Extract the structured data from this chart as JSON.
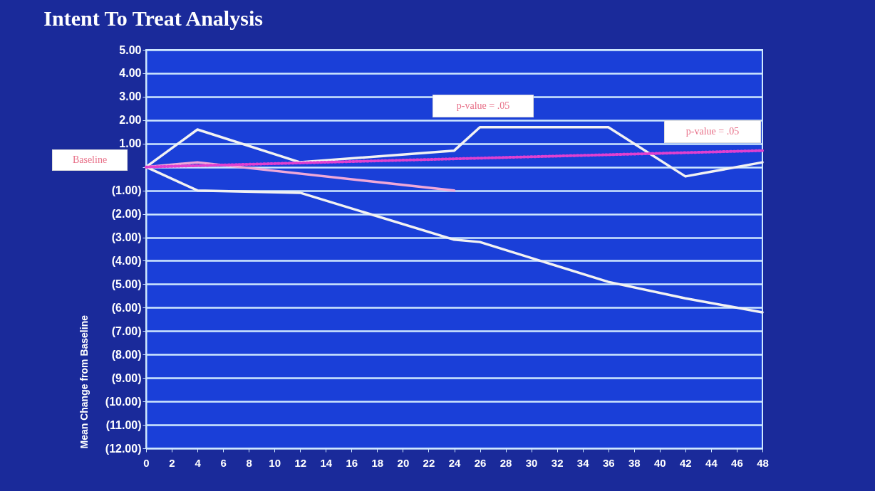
{
  "chart_data": {
    "type": "line",
    "title": "Intent To Treat Analysis",
    "ylabel": "Mean Change from Baseline",
    "annotations": [
      "Baseline",
      "p-value = .05",
      "p-value = .05"
    ],
    "xlim": [
      0,
      48
    ],
    "xticks": [
      0,
      2,
      4,
      6,
      8,
      10,
      12,
      14,
      16,
      18,
      20,
      22,
      24,
      26,
      28,
      30,
      32,
      34,
      36,
      38,
      40,
      42,
      44,
      46,
      48
    ],
    "ylim": [
      -12,
      5
    ],
    "yticks": [
      {
        "value": 5,
        "label": "5.00"
      },
      {
        "value": 4,
        "label": "4.00"
      },
      {
        "value": 3,
        "label": "3.00"
      },
      {
        "value": 2,
        "label": "2.00"
      },
      {
        "value": 1,
        "label": "1.00"
      },
      {
        "value": 0,
        "label": null
      },
      {
        "value": -1,
        "label": "(1.00)"
      },
      {
        "value": -2,
        "label": "(2.00)"
      },
      {
        "value": -3,
        "label": "(3.00)"
      },
      {
        "value": -4,
        "label": "(4.00)"
      },
      {
        "value": -5,
        "label": "(5.00)"
      },
      {
        "value": -6,
        "label": "(6.00)"
      },
      {
        "value": -7,
        "label": "(7.00)"
      },
      {
        "value": -8,
        "label": "(8.00)"
      },
      {
        "value": -9,
        "label": "(9.00)"
      },
      {
        "value": -10,
        "label": "(10.00)"
      },
      {
        "value": -11,
        "label": "(11.00)"
      },
      {
        "value": -12,
        "label": "(12.00)"
      }
    ],
    "grid": "y",
    "marker": "none",
    "series": [
      {
        "color": "#f2f2f2",
        "x": [
          0,
          4,
          12,
          24,
          26,
          36,
          42,
          48
        ],
        "values": [
          0,
          1.6,
          0.2,
          0.7,
          1.7,
          1.7,
          -0.4,
          0.2
        ]
      },
      {
        "color": "#f2f2f2",
        "x": [
          0,
          4,
          12,
          24,
          26,
          36,
          42,
          48
        ],
        "values": [
          0,
          -1.0,
          -1.1,
          -3.1,
          -3.2,
          -4.9,
          -5.6,
          -6.2
        ]
      },
      {
        "color": "#f0a8d8",
        "x": [
          0,
          4,
          24
        ],
        "values": [
          0,
          0.2,
          -1.0
        ]
      },
      {
        "color": "#e040d0",
        "x": [
          0,
          48
        ],
        "values": [
          0,
          0.7
        ],
        "line_style": "dotted"
      }
    ]
  }
}
